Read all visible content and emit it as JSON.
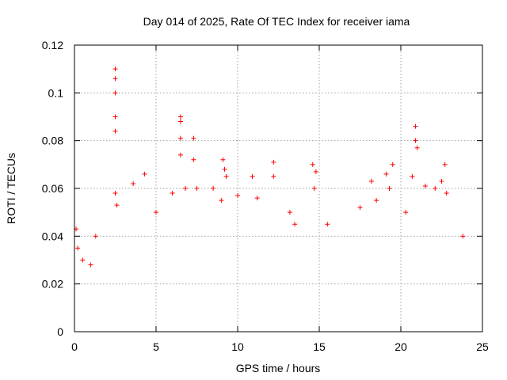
{
  "chart_data": {
    "type": "scatter",
    "title": "Day 014 of 2025, Rate Of TEC Index for receiver iama",
    "xlabel": "GPS time / hours",
    "ylabel": "ROTI / TECUs",
    "xlim": [
      0,
      25
    ],
    "ylim": [
      0,
      0.12
    ],
    "x_ticks": [
      0,
      5,
      10,
      15,
      20,
      25
    ],
    "x_tick_labels": [
      "0",
      "5",
      "10",
      "15",
      "20",
      "25"
    ],
    "y_ticks": [
      0,
      0.02,
      0.04,
      0.06,
      0.08,
      0.1,
      0.12
    ],
    "y_tick_labels": [
      "0",
      "0.02",
      "0.04",
      "0.06",
      "0.08",
      "0.1",
      "0.12"
    ],
    "grid": true,
    "marker": "+",
    "series": [
      {
        "name": "ROTI",
        "color": "#ff0000",
        "points": [
          [
            0.1,
            0.043
          ],
          [
            0.2,
            0.035
          ],
          [
            0.5,
            0.03
          ],
          [
            1.0,
            0.028
          ],
          [
            1.3,
            0.04
          ],
          [
            2.5,
            0.11
          ],
          [
            2.5,
            0.106
          ],
          [
            2.5,
            0.1
          ],
          [
            2.5,
            0.09
          ],
          [
            2.5,
            0.084
          ],
          [
            2.5,
            0.058
          ],
          [
            2.6,
            0.053
          ],
          [
            3.6,
            0.062
          ],
          [
            4.3,
            0.066
          ],
          [
            5.0,
            0.05
          ],
          [
            6.0,
            0.058
          ],
          [
            6.5,
            0.09
          ],
          [
            6.5,
            0.088
          ],
          [
            6.5,
            0.081
          ],
          [
            6.5,
            0.074
          ],
          [
            6.8,
            0.06
          ],
          [
            7.3,
            0.081
          ],
          [
            7.3,
            0.072
          ],
          [
            7.5,
            0.06
          ],
          [
            8.5,
            0.06
          ],
          [
            9.1,
            0.072
          ],
          [
            9.2,
            0.068
          ],
          [
            9.3,
            0.065
          ],
          [
            9.0,
            0.055
          ],
          [
            10.0,
            0.057
          ],
          [
            10.9,
            0.065
          ],
          [
            11.2,
            0.056
          ],
          [
            12.2,
            0.071
          ],
          [
            12.2,
            0.065
          ],
          [
            13.2,
            0.05
          ],
          [
            13.5,
            0.045
          ],
          [
            14.6,
            0.07
          ],
          [
            14.7,
            0.06
          ],
          [
            14.8,
            0.067
          ],
          [
            15.5,
            0.045
          ],
          [
            17.5,
            0.052
          ],
          [
            18.2,
            0.063
          ],
          [
            18.5,
            0.055
          ],
          [
            19.1,
            0.066
          ],
          [
            19.5,
            0.07
          ],
          [
            19.3,
            0.06
          ],
          [
            20.3,
            0.05
          ],
          [
            20.7,
            0.065
          ],
          [
            20.9,
            0.086
          ],
          [
            20.9,
            0.08
          ],
          [
            21.0,
            0.077
          ],
          [
            21.5,
            0.061
          ],
          [
            22.1,
            0.06
          ],
          [
            22.5,
            0.063
          ],
          [
            22.7,
            0.07
          ],
          [
            22.8,
            0.058
          ],
          [
            23.8,
            0.04
          ]
        ]
      }
    ]
  }
}
